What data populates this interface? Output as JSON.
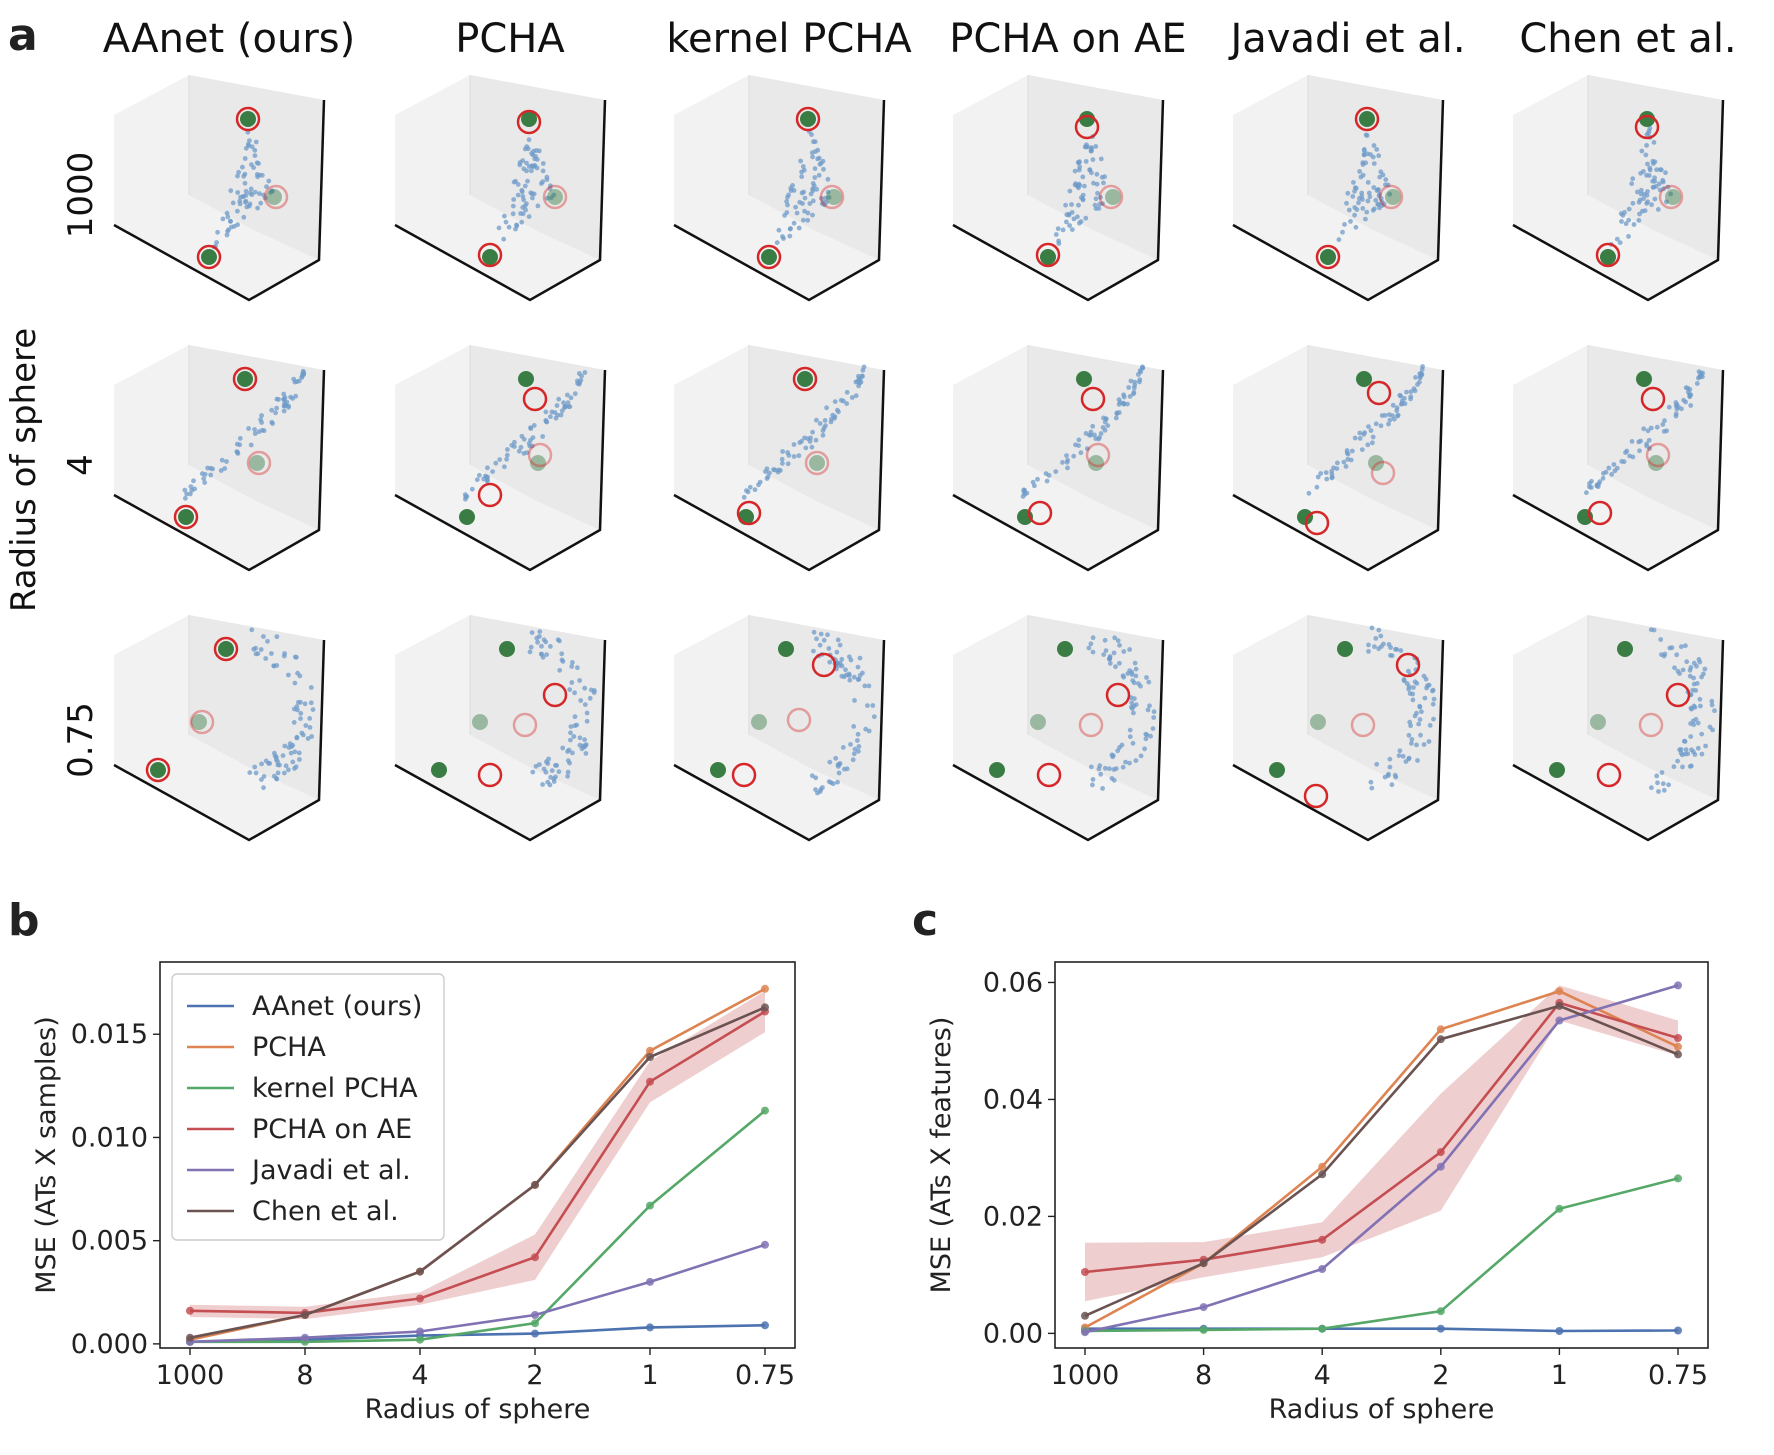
{
  "panel_labels": {
    "a": "a",
    "b": "b",
    "c": "c"
  },
  "panel_a": {
    "methods": [
      "AAnet (ours)",
      "PCHA",
      "kernel PCHA",
      "PCHA on AE",
      "Javadi et al.",
      "Chen et al."
    ],
    "row_axis_label": "Radius of sphere",
    "rows": [
      "1000",
      "4",
      "0.75"
    ]
  },
  "colors": {
    "AAnet (ours)": "#4c72b0",
    "PCHA": "#dd8452",
    "kernel PCHA": "#55a868",
    "PCHA on AE": "#c44e52",
    "Javadi et al.": "#8172b3",
    "Chen et al.": "#6b5352",
    "true_archetype": "#3a7d44",
    "predicted_archetype": "#d62728",
    "cloud": "#6f9bc8"
  },
  "chart_data": [
    {
      "id": "b",
      "type": "line",
      "categories": [
        "1000",
        "8",
        "4",
        "2",
        "1",
        "0.75"
      ],
      "xlabel": "Radius of sphere",
      "ylabel": "MSE (ATs X samples)",
      "ylim": [
        -0.0002,
        0.0185
      ],
      "yticks": [
        0.0,
        0.005,
        0.01,
        0.015
      ],
      "ytick_labels": [
        "0.000",
        "0.005",
        "0.010",
        "0.015"
      ],
      "legend_position": "upper-left",
      "series": [
        {
          "name": "AAnet (ours)",
          "values": [
            0.0001,
            0.0002,
            0.0004,
            0.0005,
            0.0008,
            0.0009
          ]
        },
        {
          "name": "PCHA",
          "values": [
            0.0002,
            0.0014,
            0.0035,
            0.0077,
            0.0142,
            0.0172
          ]
        },
        {
          "name": "kernel PCHA",
          "values": [
            0.0001,
            0.0001,
            0.0002,
            0.001,
            0.0067,
            0.0113
          ]
        },
        {
          "name": "PCHA on AE",
          "values": [
            0.0016,
            0.0015,
            0.0022,
            0.0042,
            0.0127,
            0.0161
          ],
          "band": [
            [
              0.0013,
              0.0019
            ],
            [
              0.0012,
              0.0018
            ],
            [
              0.0019,
              0.0025
            ],
            [
              0.0031,
              0.0053
            ],
            [
              0.0117,
              0.0137
            ],
            [
              0.0151,
              0.0171
            ]
          ]
        },
        {
          "name": "Javadi et al.",
          "values": [
            0.0001,
            0.0003,
            0.0006,
            0.0014,
            0.003,
            0.0048
          ]
        },
        {
          "name": "Chen et al.",
          "values": [
            0.0003,
            0.0014,
            0.0035,
            0.0077,
            0.0139,
            0.0163
          ]
        }
      ]
    },
    {
      "id": "c",
      "type": "line",
      "categories": [
        "1000",
        "8",
        "4",
        "2",
        "1",
        "0.75"
      ],
      "xlabel": "Radius of sphere",
      "ylabel": "MSE (ATs X features)",
      "ylim": [
        -0.0025,
        0.0635
      ],
      "yticks": [
        0.0,
        0.02,
        0.04,
        0.06
      ],
      "ytick_labels": [
        "0.00",
        "0.02",
        "0.04",
        "0.06"
      ],
      "series": [
        {
          "name": "AAnet (ours)",
          "values": [
            0.0008,
            0.0008,
            0.0008,
            0.0008,
            0.0004,
            0.0005
          ]
        },
        {
          "name": "PCHA",
          "values": [
            0.001,
            0.012,
            0.0285,
            0.052,
            0.0585,
            0.049
          ]
        },
        {
          "name": "kernel PCHA",
          "values": [
            0.0004,
            0.0006,
            0.0008,
            0.0038,
            0.0213,
            0.0265
          ]
        },
        {
          "name": "PCHA on AE",
          "values": [
            0.0105,
            0.0126,
            0.016,
            0.031,
            0.0565,
            0.0505
          ],
          "band": [
            [
              0.0055,
              0.0155
            ],
            [
              0.0096,
              0.0156
            ],
            [
              0.013,
              0.019
            ],
            [
              0.021,
              0.041
            ],
            [
              0.0535,
              0.0595
            ],
            [
              0.0475,
              0.0535
            ]
          ]
        },
        {
          "name": "Javadi et al.",
          "values": [
            0.0002,
            0.0045,
            0.011,
            0.0285,
            0.0535,
            0.0595
          ]
        },
        {
          "name": "Chen et al.",
          "values": [
            0.003,
            0.012,
            0.0272,
            0.0503,
            0.056,
            0.0477
          ]
        }
      ]
    }
  ]
}
